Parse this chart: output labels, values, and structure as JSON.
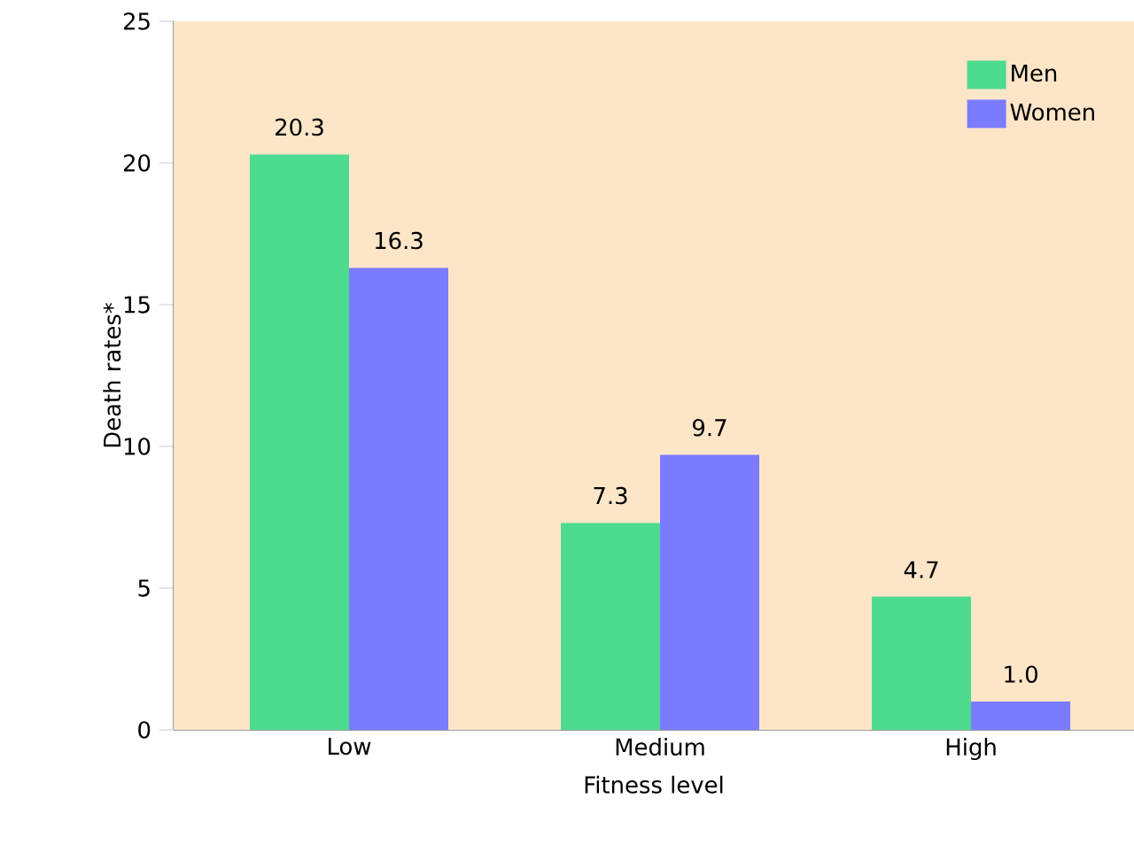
{
  "chart_data": {
    "type": "bar",
    "xlabel": "Fitness level",
    "ylabel": "Death rates*",
    "categories": [
      "Low",
      "Medium",
      "High"
    ],
    "series": [
      {
        "name": "Men",
        "color": "#4cdb8f",
        "values": [
          20.3,
          7.3,
          4.7
        ],
        "value_labels": [
          "20.3",
          "7.3",
          "4.7"
        ]
      },
      {
        "name": "Women",
        "color": "#7b7bff",
        "values": [
          16.3,
          9.7,
          1.0
        ],
        "value_labels": [
          "16.3",
          "9.7",
          "1.0"
        ]
      }
    ],
    "ylim": [
      0,
      25
    ],
    "yticks": [
      0,
      5,
      10,
      15,
      20,
      25
    ],
    "legend": "top right",
    "grid": false
  }
}
